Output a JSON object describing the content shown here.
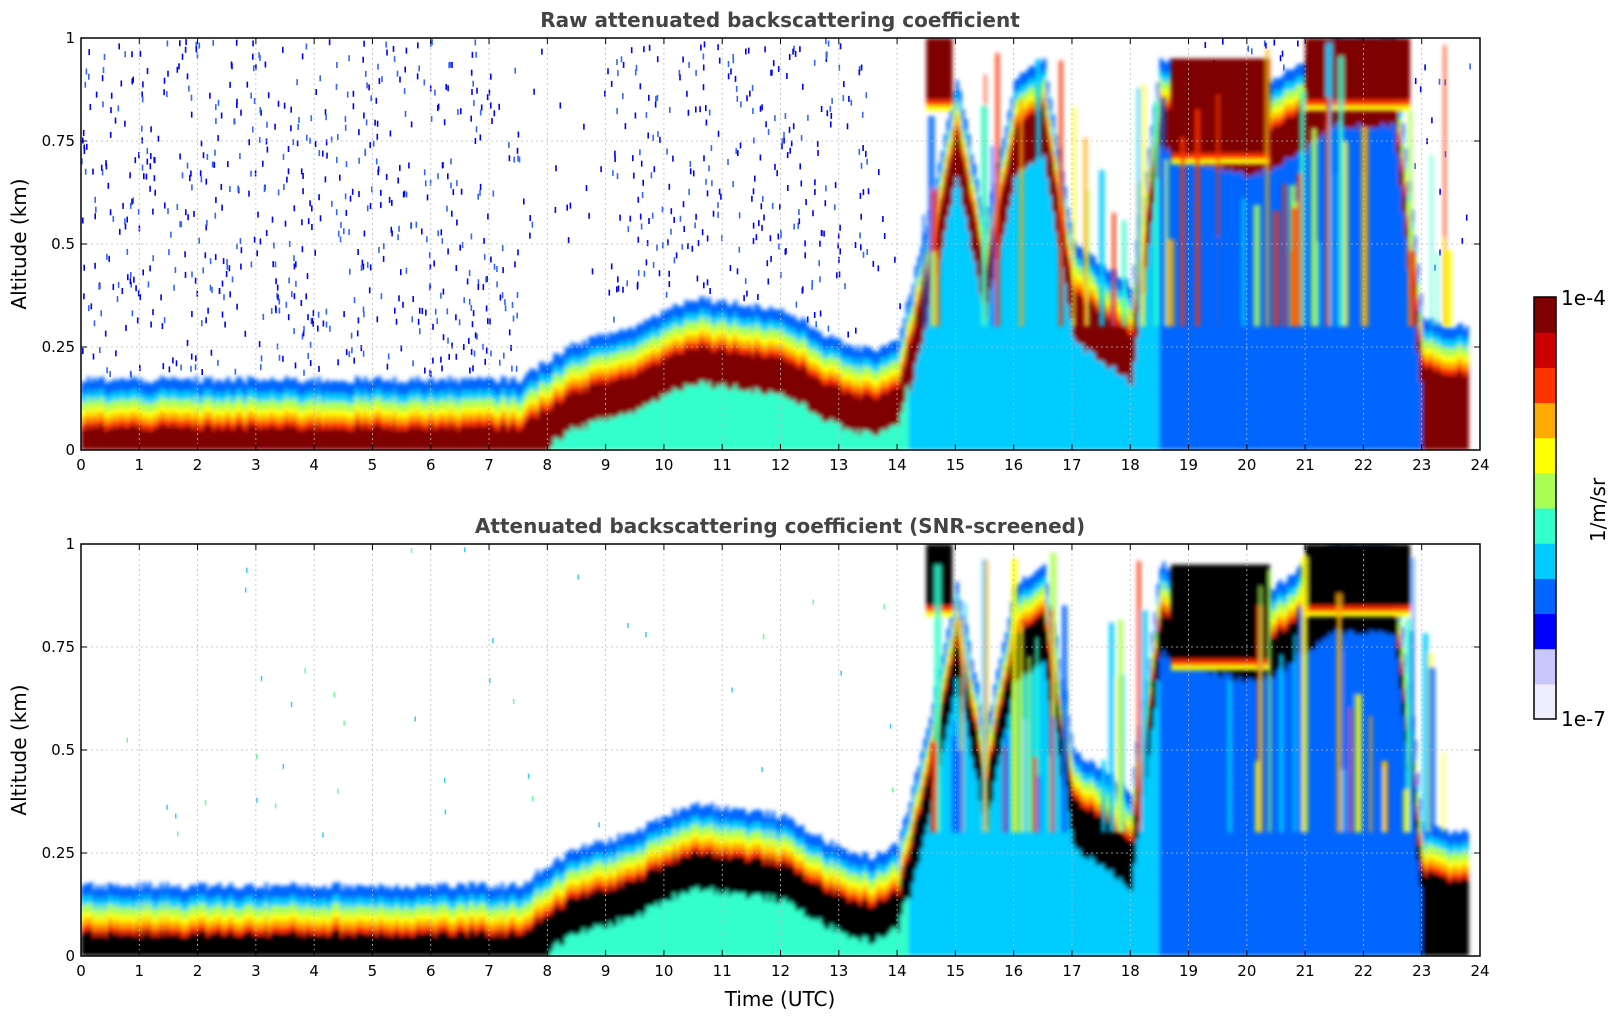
{
  "colors": {
    "colormap": [
      "#eeeeff",
      "#c8c8ff",
      "#0000ff",
      "#0066ff",
      "#00ccff",
      "#33ffcc",
      "#aaff55",
      "#ffff00",
      "#ffaa00",
      "#ff3300",
      "#cc0000",
      "#7f0000"
    ],
    "screened_saturation": "#000000",
    "grid": "#bbbbbb"
  },
  "chart_data": [
    {
      "type": "heatmap",
      "title": "Raw attenuated backscattering coefficient",
      "xlabel": "",
      "ylabel": "Altitude (km)",
      "xlim": [
        0,
        24
      ],
      "ylim": [
        0,
        1
      ],
      "xticks": [
        "0",
        "1",
        "2",
        "3",
        "4",
        "5",
        "6",
        "7",
        "8",
        "9",
        "10",
        "11",
        "12",
        "13",
        "14",
        "15",
        "16",
        "17",
        "18",
        "19",
        "20",
        "21",
        "22",
        "23",
        "24"
      ],
      "yticks": [
        "0",
        "0.25",
        "0.5",
        "0.75",
        "1"
      ],
      "grid": true,
      "layer_top_km": [
        [
          0,
          0.17
        ],
        [
          1,
          0.17
        ],
        [
          2,
          0.17
        ],
        [
          3,
          0.17
        ],
        [
          4,
          0.17
        ],
        [
          5,
          0.17
        ],
        [
          6,
          0.17
        ],
        [
          7,
          0.17
        ],
        [
          7.5,
          0.17
        ],
        [
          8,
          0.22
        ],
        [
          8.5,
          0.26
        ],
        [
          9,
          0.28
        ],
        [
          9.5,
          0.3
        ],
        [
          10,
          0.34
        ],
        [
          10.5,
          0.37
        ],
        [
          11,
          0.36
        ],
        [
          11.5,
          0.35
        ],
        [
          12,
          0.34
        ],
        [
          12.5,
          0.3
        ],
        [
          13,
          0.26
        ],
        [
          13.5,
          0.24
        ],
        [
          14,
          0.27
        ],
        [
          14.5,
          0.55
        ],
        [
          15,
          0.9
        ],
        [
          15.5,
          0.55
        ],
        [
          16,
          0.9
        ],
        [
          16.5,
          0.95
        ],
        [
          17,
          0.5
        ],
        [
          17.5,
          0.45
        ],
        [
          18,
          0.4
        ],
        [
          18.5,
          0.95
        ],
        [
          19,
          0.92
        ],
        [
          19.5,
          0.9
        ],
        [
          20,
          0.88
        ],
        [
          20.5,
          0.9
        ],
        [
          21,
          0.95
        ],
        [
          21.5,
          1
        ],
        [
          22,
          1
        ],
        [
          22.5,
          1
        ],
        [
          23,
          0.32
        ],
        [
          23.5,
          0.3
        ],
        [
          23.8,
          0.3
        ]
      ]
    },
    {
      "type": "heatmap",
      "title": "Attenuated backscattering coefficient (SNR-screened)",
      "xlabel": "Time (UTC)",
      "ylabel": "Altitude (km)",
      "xlim": [
        0,
        24
      ],
      "ylim": [
        0,
        1
      ],
      "xticks": [
        "0",
        "1",
        "2",
        "3",
        "4",
        "5",
        "6",
        "7",
        "8",
        "9",
        "10",
        "11",
        "12",
        "13",
        "14",
        "15",
        "16",
        "17",
        "18",
        "19",
        "20",
        "21",
        "22",
        "23",
        "24"
      ],
      "yticks": [
        "0",
        "0.25",
        "0.5",
        "0.75",
        "1"
      ],
      "grid": true
    }
  ],
  "colorbar": {
    "max_label": "1e-4",
    "min_label": "1e-7",
    "units_label": "1/m/sr"
  }
}
